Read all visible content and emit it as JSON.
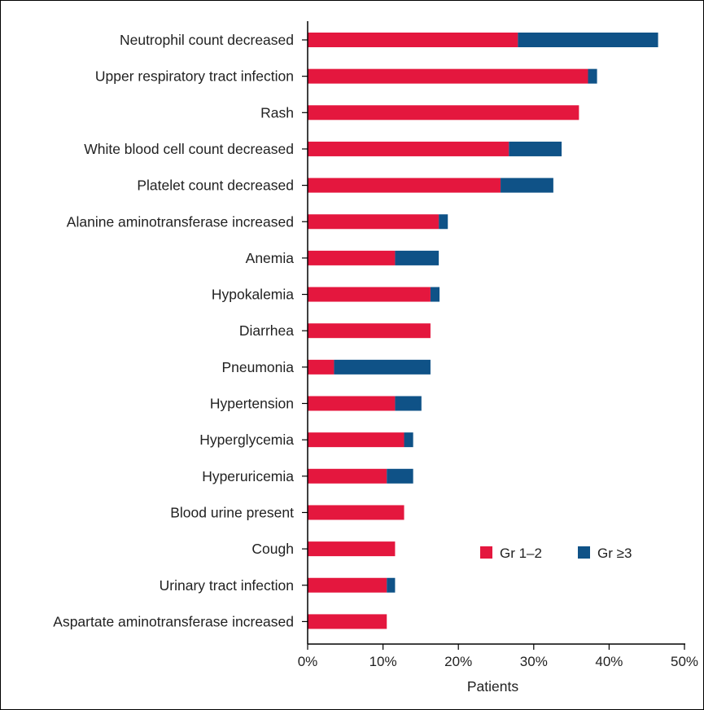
{
  "chart_data": {
    "type": "bar",
    "orientation": "horizontal",
    "stacked": true,
    "categories": [
      "Neutrophil count decreased",
      "Upper respiratory tract infection",
      "Rash",
      "White blood cell count decreased",
      "Platelet count decreased",
      "Alanine aminotransferase increased",
      "Anemia",
      "Hypokalemia",
      "Diarrhea",
      "Pneumonia",
      "Hypertension",
      "Hyperglycemia",
      "Hyperuricemia",
      "Blood urine present",
      "Cough",
      "Urinary tract infection",
      "Aspartate aminotransferase increased"
    ],
    "series": [
      {
        "name": "Gr 1–2",
        "color": "#e4173e",
        "values": [
          27.9,
          37.2,
          36.0,
          26.7,
          25.6,
          17.4,
          11.6,
          16.3,
          16.3,
          3.5,
          11.6,
          12.8,
          10.5,
          12.8,
          11.6,
          10.5,
          10.5
        ]
      },
      {
        "name": "Gr ≥3",
        "color": "#0f5287",
        "values": [
          18.6,
          1.2,
          0.0,
          7.0,
          7.0,
          1.2,
          5.8,
          1.2,
          0.0,
          12.8,
          3.5,
          1.2,
          3.5,
          0.0,
          0.0,
          1.1,
          0.0
        ]
      }
    ],
    "xlabel": "Patients",
    "xlim": [
      0,
      50
    ],
    "xticks": [
      "0%",
      "10%",
      "20%",
      "30%",
      "40%",
      "50%"
    ],
    "xtick_values": [
      0,
      10,
      20,
      30,
      40,
      50
    ],
    "grid": false,
    "legend_position": "inside lower-right"
  }
}
